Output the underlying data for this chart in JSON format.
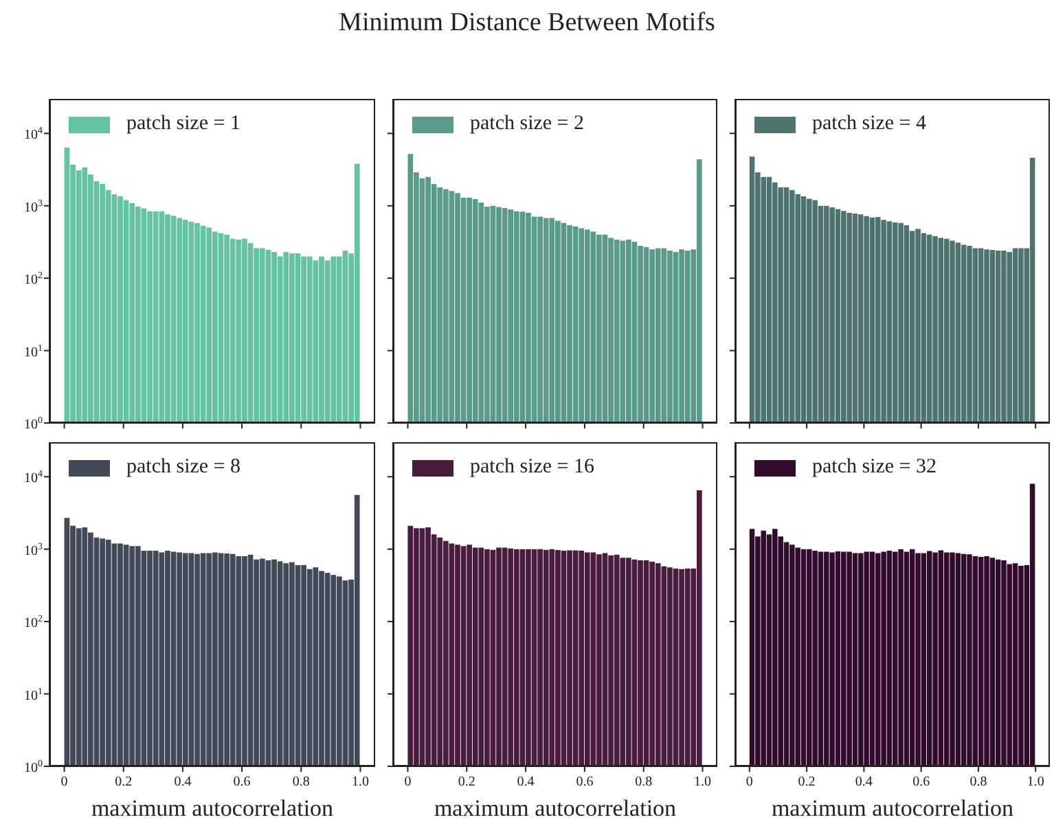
{
  "chart_data": [
    {
      "type": "histogram",
      "bins": [
        0,
        0.02,
        0.04,
        0.06,
        0.08,
        0.1,
        0.12,
        0.14,
        0.16,
        0.18,
        0.2,
        0.22,
        0.24,
        0.26,
        0.28,
        0.3,
        0.32,
        0.34,
        0.36,
        0.38,
        0.4,
        0.42,
        0.44,
        0.46,
        0.48,
        0.5,
        0.52,
        0.54,
        0.56,
        0.58,
        0.6,
        0.62,
        0.64,
        0.66,
        0.68,
        0.7,
        0.72,
        0.74,
        0.76,
        0.78,
        0.8,
        0.82,
        0.84,
        0.86,
        0.88,
        0.9,
        0.92,
        0.94,
        0.96,
        0.98,
        1
      ],
      "log": true,
      "legend": "top left",
      "tick_labels": "y",
      "xlim": [
        -0.05,
        1.05
      ],
      "xticks": [
        {
          "value": 0,
          "label": null
        },
        {
          "value": 0.2,
          "label": null
        },
        {
          "value": 0.4,
          "label": null
        },
        {
          "value": 0.6,
          "label": null
        },
        {
          "value": 0.8,
          "label": null
        },
        {
          "value": 1,
          "label": null
        }
      ],
      "ylim": [
        1,
        30000
      ],
      "yticks": [
        {
          "value": 1,
          "label": "10$^{0}$"
        },
        {
          "value": 10,
          "label": "10$^{1}$"
        },
        {
          "value": 100,
          "label": "10$^{2}$"
        },
        {
          "value": 1000,
          "label": "10$^{3}$"
        },
        {
          "value": 10000,
          "label": "10$^{4}$"
        }
      ],
      "series": [
        {
          "name": "patch size = 1",
          "color": "#66c2a5",
          "values": [
            6400,
            3700,
            3100,
            3400,
            2700,
            2200,
            2000,
            1650,
            1440,
            1360,
            1200,
            1090,
            970,
            920,
            840,
            840,
            840,
            760,
            730,
            680,
            640,
            600,
            580,
            530,
            500,
            440,
            420,
            400,
            350,
            340,
            350,
            305,
            260,
            260,
            245,
            230,
            200,
            230,
            220,
            220,
            200,
            200,
            176,
            200,
            176,
            200,
            200,
            240,
            220,
            3800
          ]
        }
      ]
    },
    {
      "type": "histogram",
      "bins": [
        0,
        0.02,
        0.04,
        0.06,
        0.08,
        0.1,
        0.12,
        0.14,
        0.16,
        0.18,
        0.2,
        0.22,
        0.24,
        0.26,
        0.28,
        0.3,
        0.32,
        0.34,
        0.36,
        0.38,
        0.4,
        0.42,
        0.44,
        0.46,
        0.48,
        0.5,
        0.52,
        0.54,
        0.56,
        0.58,
        0.6,
        0.62,
        0.64,
        0.66,
        0.68,
        0.7,
        0.72,
        0.74,
        0.76,
        0.78,
        0.8,
        0.82,
        0.84,
        0.86,
        0.88,
        0.9,
        0.92,
        0.94,
        0.96,
        0.98,
        1
      ],
      "log": true,
      "legend": "top left",
      "tick_labels": false,
      "title": "Minimum Distance Between Motifs",
      "xlim": [
        -0.05,
        1.05
      ],
      "xticks": [
        {
          "value": 0,
          "label": null
        },
        {
          "value": 0.2,
          "label": null
        },
        {
          "value": 0.4,
          "label": null
        },
        {
          "value": 0.6,
          "label": null
        },
        {
          "value": 0.8,
          "label": null
        },
        {
          "value": 1,
          "label": null
        }
      ],
      "ylim": [
        1,
        30000
      ],
      "yticks": [
        {
          "value": 1,
          "label": null
        },
        {
          "value": 10,
          "label": null
        },
        {
          "value": 100,
          "label": null
        },
        {
          "value": 1000,
          "label": null
        },
        {
          "value": 10000,
          "label": null
        }
      ],
      "series": [
        {
          "name": "patch size = 2",
          "color": "#5a998c",
          "values": [
            5200,
            2900,
            2400,
            2500,
            2000,
            1800,
            1700,
            1600,
            1500,
            1300,
            1300,
            1240,
            1110,
            970,
            1000,
            960,
            930,
            890,
            840,
            830,
            800,
            710,
            710,
            680,
            680,
            620,
            580,
            540,
            520,
            490,
            470,
            440,
            400,
            400,
            360,
            340,
            330,
            340,
            320,
            280,
            270,
            250,
            260,
            260,
            240,
            230,
            250,
            240,
            250,
            4400
          ]
        }
      ]
    },
    {
      "type": "histogram",
      "bins": [
        0,
        0.02,
        0.04,
        0.06,
        0.08,
        0.1,
        0.12,
        0.14,
        0.16,
        0.18,
        0.2,
        0.22,
        0.24,
        0.26,
        0.28,
        0.3,
        0.32,
        0.34,
        0.36,
        0.38,
        0.4,
        0.42,
        0.44,
        0.46,
        0.48,
        0.5,
        0.52,
        0.54,
        0.56,
        0.58,
        0.6,
        0.62,
        0.64,
        0.66,
        0.68,
        0.7,
        0.72,
        0.74,
        0.76,
        0.78,
        0.8,
        0.82,
        0.84,
        0.86,
        0.88,
        0.9,
        0.92,
        0.94,
        0.96,
        0.98,
        1
      ],
      "log": true,
      "legend": "top left",
      "tick_labels": false,
      "xlim": [
        -0.05,
        1.05
      ],
      "xticks": [
        {
          "value": 0,
          "label": null
        },
        {
          "value": 0.2,
          "label": null
        },
        {
          "value": 0.4,
          "label": null
        },
        {
          "value": 0.6,
          "label": null
        },
        {
          "value": 0.8,
          "label": null
        },
        {
          "value": 1,
          "label": null
        }
      ],
      "ylim": [
        1,
        30000
      ],
      "yticks": [
        {
          "value": 1,
          "label": null
        },
        {
          "value": 10,
          "label": null
        },
        {
          "value": 100,
          "label": null
        },
        {
          "value": 1000,
          "label": null
        },
        {
          "value": 10000,
          "label": null
        }
      ],
      "series": [
        {
          "name": "patch size = 4",
          "color": "#4f7373",
          "values": [
            4800,
            2900,
            2500,
            2500,
            2100,
            1800,
            1800,
            1650,
            1450,
            1350,
            1250,
            1200,
            1000,
            1000,
            950,
            900,
            850,
            800,
            780,
            760,
            720,
            690,
            700,
            640,
            610,
            590,
            580,
            540,
            450,
            480,
            420,
            400,
            380,
            360,
            350,
            330,
            310,
            290,
            280,
            260,
            260,
            250,
            245,
            240,
            240,
            230,
            260,
            260,
            260,
            4600
          ]
        }
      ]
    },
    {
      "type": "histogram",
      "bins": [
        0,
        0.02,
        0.04,
        0.06,
        0.08,
        0.1,
        0.12,
        0.14,
        0.16,
        0.18,
        0.2,
        0.22,
        0.24,
        0.26,
        0.28,
        0.3,
        0.32,
        0.34,
        0.36,
        0.38,
        0.4,
        0.42,
        0.44,
        0.46,
        0.48,
        0.5,
        0.52,
        0.54,
        0.56,
        0.58,
        0.6,
        0.62,
        0.64,
        0.66,
        0.68,
        0.7,
        0.72,
        0.74,
        0.76,
        0.78,
        0.8,
        0.82,
        0.84,
        0.86,
        0.88,
        0.9,
        0.92,
        0.94,
        0.96,
        0.98,
        1
      ],
      "log": true,
      "legend": "top left",
      "xlabel": "maximum autocorrelation",
      "xlim": [
        -0.05,
        1.05
      ],
      "xticks": [
        0,
        0.2,
        0.4,
        0.6,
        0.8,
        {
          "value": 1,
          "label": "1.0"
        }
      ],
      "ylim": [
        1,
        30000
      ],
      "yticks": [
        {
          "value": 1,
          "label": "10$^{0}$"
        },
        {
          "value": 10,
          "label": "10$^{1}$"
        },
        {
          "value": 100,
          "label": "10$^{2}$"
        },
        {
          "value": 1000,
          "label": "10$^{3}$"
        },
        {
          "value": 10000,
          "label": "10$^{4}$"
        }
      ],
      "series": [
        {
          "name": "patch size = 8",
          "color": "#434a57",
          "values": [
            2700,
            2100,
            1950,
            2000,
            1700,
            1450,
            1400,
            1350,
            1200,
            1200,
            1150,
            1100,
            1100,
            950,
            950,
            950,
            900,
            950,
            920,
            900,
            880,
            880,
            860,
            880,
            880,
            900,
            880,
            870,
            860,
            800,
            800,
            840,
            720,
            740,
            700,
            720,
            680,
            640,
            660,
            600,
            600,
            530,
            560,
            500,
            470,
            440,
            420,
            370,
            380,
            5600
          ]
        }
      ]
    },
    {
      "type": "histogram",
      "bins": [
        0,
        0.02,
        0.04,
        0.06,
        0.08,
        0.1,
        0.12,
        0.14,
        0.16,
        0.18,
        0.2,
        0.22,
        0.24,
        0.26,
        0.28,
        0.3,
        0.32,
        0.34,
        0.36,
        0.38,
        0.4,
        0.42,
        0.44,
        0.46,
        0.48,
        0.5,
        0.52,
        0.54,
        0.56,
        0.58,
        0.6,
        0.62,
        0.64,
        0.66,
        0.68,
        0.7,
        0.72,
        0.74,
        0.76,
        0.78,
        0.8,
        0.82,
        0.84,
        0.86,
        0.88,
        0.9,
        0.92,
        0.94,
        0.96,
        0.98,
        1
      ],
      "log": true,
      "legend": "top left",
      "tick_labels": "x",
      "xlabel": "maximum autocorrelation",
      "xlim": [
        -0.05,
        1.05
      ],
      "xticks": [
        0,
        0.2,
        0.4,
        0.6,
        0.8,
        {
          "value": 1,
          "label": "1.0"
        }
      ],
      "ylim": [
        1,
        30000
      ],
      "yticks": [
        {
          "value": 1,
          "label": null
        },
        {
          "value": 10,
          "label": null
        },
        {
          "value": 100,
          "label": null
        },
        {
          "value": 1000,
          "label": null
        },
        {
          "value": 10000,
          "label": null
        }
      ],
      "series": [
        {
          "name": "patch size = 16",
          "color": "#4a1d3f",
          "values": [
            2100,
            1950,
            1950,
            2000,
            1600,
            1450,
            1300,
            1200,
            1150,
            1100,
            1150,
            1050,
            1050,
            1000,
            980,
            1050,
            1050,
            1020,
            1000,
            1000,
            1000,
            1000,
            1000,
            980,
            1000,
            970,
            950,
            960,
            960,
            950,
            900,
            900,
            850,
            880,
            820,
            840,
            760,
            760,
            720,
            700,
            700,
            670,
            640,
            580,
            560,
            540,
            530,
            540,
            540,
            6500
          ]
        }
      ]
    },
    {
      "type": "histogram",
      "bins": [
        0,
        0.02,
        0.04,
        0.06,
        0.08,
        0.1,
        0.12,
        0.14,
        0.16,
        0.18,
        0.2,
        0.22,
        0.24,
        0.26,
        0.28,
        0.3,
        0.32,
        0.34,
        0.36,
        0.38,
        0.4,
        0.42,
        0.44,
        0.46,
        0.48,
        0.5,
        0.52,
        0.54,
        0.56,
        0.58,
        0.6,
        0.62,
        0.64,
        0.66,
        0.68,
        0.7,
        0.72,
        0.74,
        0.76,
        0.78,
        0.8,
        0.82,
        0.84,
        0.86,
        0.88,
        0.9,
        0.92,
        0.94,
        0.96,
        0.98,
        1
      ],
      "log": true,
      "legend": "top left",
      "tick_labels": "x",
      "xlabel": "maximum autocorrelation",
      "xlim": [
        -0.05,
        1.05
      ],
      "xticks": [
        0,
        0.2,
        0.4,
        0.6,
        0.8,
        {
          "value": 1,
          "label": "1.0"
        }
      ],
      "ylim": [
        1,
        30000
      ],
      "yticks": [
        {
          "value": 1,
          "label": null
        },
        {
          "value": 10,
          "label": null
        },
        {
          "value": 100,
          "label": null
        },
        {
          "value": 1000,
          "label": null
        },
        {
          "value": 10000,
          "label": null
        }
      ],
      "series": [
        {
          "name": "patch size = 32",
          "color": "#330b2d",
          "values": [
            1900,
            1500,
            1800,
            1600,
            1900,
            1500,
            1250,
            1150,
            1050,
            1000,
            1000,
            950,
            920,
            920,
            900,
            930,
            920,
            920,
            880,
            880,
            920,
            920,
            880,
            920,
            950,
            920,
            1000,
            920,
            1000,
            880,
            880,
            940,
            900,
            960,
            900,
            900,
            880,
            860,
            850,
            800,
            780,
            800,
            760,
            720,
            700,
            620,
            640,
            590,
            600,
            8000
          ]
        }
      ]
    }
  ]
}
